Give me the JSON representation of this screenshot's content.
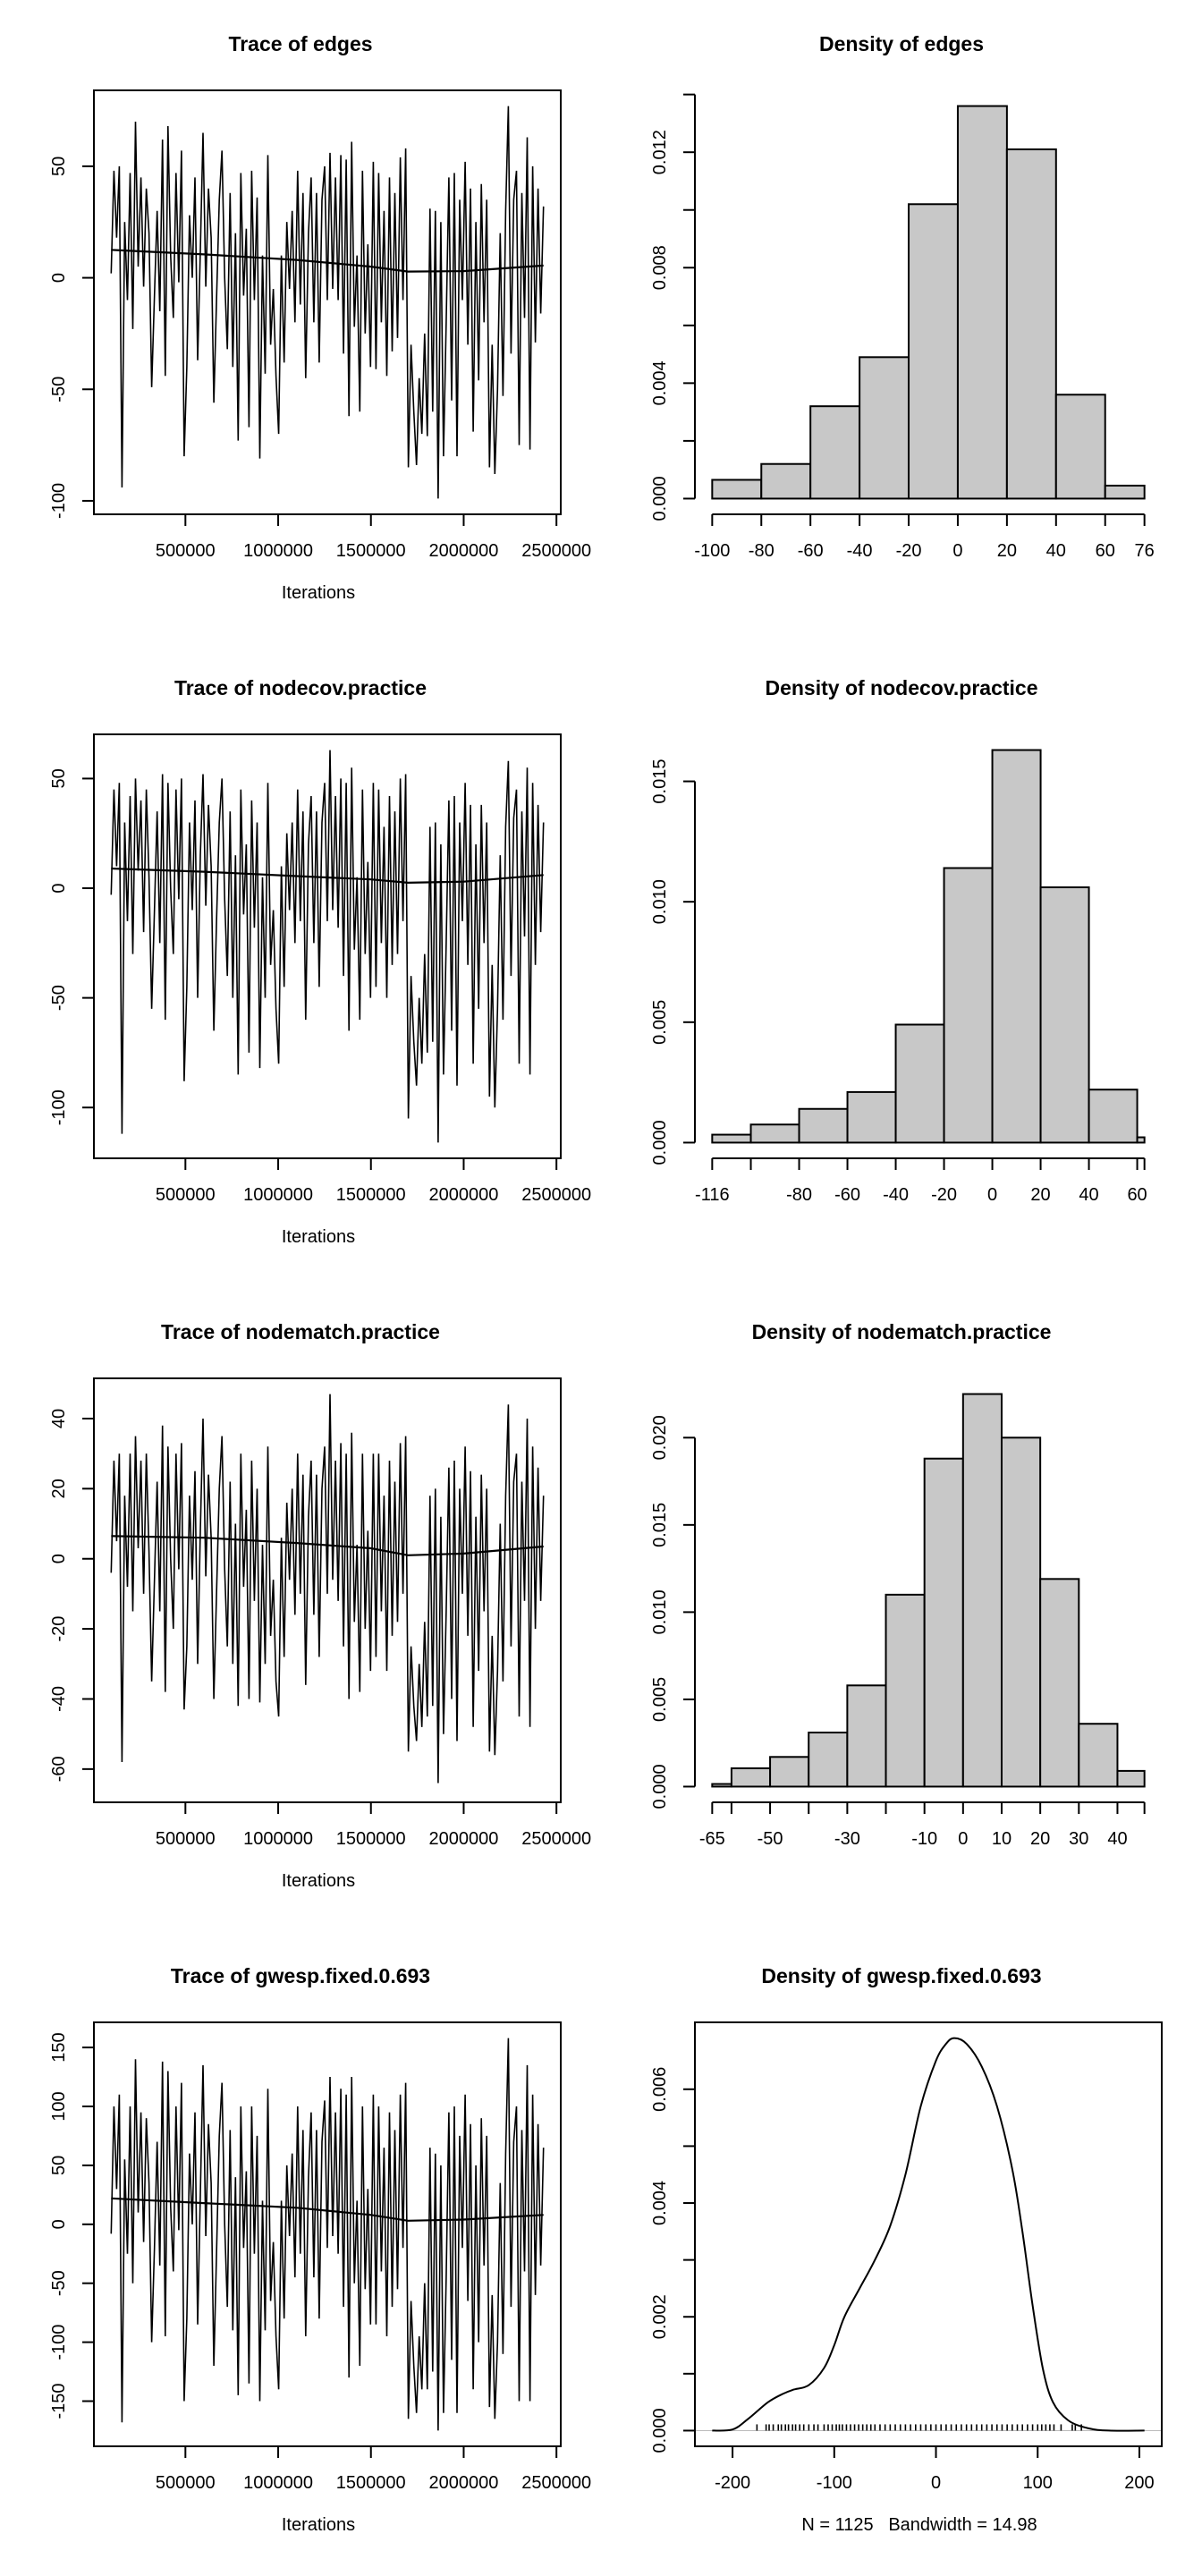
{
  "chart_data": [
    {
      "type": "line",
      "title": "Trace of edges",
      "xlabel": "Iterations",
      "x_range": [
        100000,
        2430000
      ],
      "xticks": [
        500000,
        1000000,
        1500000,
        2000000,
        2500000
      ],
      "yticks": [
        -100,
        -50,
        0,
        50
      ],
      "ylim": [
        -99,
        77
      ],
      "values": [
        2,
        48,
        18,
        50,
        -94,
        25,
        -10,
        47,
        -23,
        70,
        5,
        45,
        -4,
        40,
        20,
        -49,
        -8,
        30,
        -15,
        62,
        -44,
        68,
        10,
        -18,
        47,
        -2,
        57,
        -80,
        -40,
        28,
        0,
        45,
        -37,
        12,
        65,
        -4,
        40,
        18,
        -56,
        -10,
        35,
        57,
        0,
        -32,
        38,
        -40,
        20,
        -73,
        47,
        -8,
        22,
        -67,
        48,
        -10,
        36,
        -81,
        10,
        -43,
        55,
        -30,
        -5,
        -44,
        -70,
        10,
        -38,
        25,
        -5,
        30,
        -20,
        48,
        -12,
        38,
        -45,
        20,
        45,
        -20,
        38,
        -38,
        35,
        50,
        -10,
        56,
        -5,
        45,
        -10,
        55,
        -34,
        53,
        -62,
        61,
        -22,
        10,
        -60,
        48,
        -25,
        15,
        -40,
        52,
        -41,
        47,
        -20,
        30,
        -44,
        45,
        -33,
        38,
        -27,
        54,
        -10,
        58,
        -85,
        -30,
        -60,
        -84,
        -45,
        -70,
        -25,
        -71,
        31,
        -60,
        30,
        -99,
        25,
        -80,
        -20,
        45,
        -55,
        47,
        -80,
        35,
        -10,
        52,
        -30,
        40,
        -69,
        25,
        -46,
        42,
        -20,
        35,
        -85,
        -30,
        -88,
        -50,
        20,
        -53,
        30,
        77,
        -34,
        35,
        48,
        -75,
        38,
        -18,
        63,
        -77,
        50,
        -29,
        40,
        -16,
        32
      ],
      "trend": [
        [
          100000,
          12.5
        ],
        [
          600000,
          10.5
        ],
        [
          1100000,
          8
        ],
        [
          1500000,
          5
        ],
        [
          1700000,
          2.8
        ],
        [
          2000000,
          3
        ],
        [
          2430000,
          5.5
        ]
      ]
    },
    {
      "type": "bar",
      "title": "Density of edges",
      "breaks": [
        -100,
        -80,
        -60,
        -40,
        -20,
        0,
        20,
        40,
        60,
        76
      ],
      "densities": [
        0.00065,
        0.0012,
        0.0032,
        0.0049,
        0.0102,
        0.0136,
        0.0121,
        0.0036,
        0.00045
      ],
      "xtick_labels": [
        -100,
        -80,
        -60,
        -40,
        -20,
        0,
        20,
        40,
        60,
        76
      ],
      "yticks": [
        0,
        0.002,
        0.004,
        0.006,
        0.008,
        0.01,
        0.012,
        0.014
      ],
      "ytick_labels": [
        "0.000",
        "0.004",
        "0.008",
        "0.012"
      ]
    },
    {
      "type": "line",
      "title": "Trace of nodecov.practice",
      "xlabel": "Iterations",
      "x_range": [
        100000,
        2430000
      ],
      "xticks": [
        500000,
        1000000,
        1500000,
        2000000,
        2500000
      ],
      "yticks": [
        -100,
        -50,
        0,
        50
      ],
      "ylim": [
        -116,
        63
      ],
      "values": [
        -3,
        45,
        10,
        48,
        -112,
        30,
        -15,
        42,
        -30,
        50,
        8,
        40,
        -20,
        45,
        5,
        -55,
        -10,
        35,
        -25,
        52,
        -60,
        48,
        0,
        -30,
        45,
        -5,
        50,
        -88,
        -45,
        30,
        -10,
        40,
        -50,
        15,
        52,
        -8,
        38,
        10,
        -65,
        -15,
        30,
        50,
        -5,
        -40,
        35,
        -50,
        15,
        -85,
        45,
        -12,
        20,
        -75,
        40,
        -18,
        30,
        -82,
        5,
        -50,
        48,
        -35,
        -10,
        -55,
        -80,
        10,
        -45,
        25,
        -10,
        30,
        -25,
        45,
        -15,
        35,
        -60,
        20,
        42,
        -25,
        35,
        -45,
        30,
        48,
        -15,
        63,
        -10,
        42,
        -18,
        50,
        -40,
        48,
        -65,
        55,
        -28,
        5,
        -60,
        45,
        -30,
        12,
        -50,
        48,
        -45,
        45,
        -25,
        28,
        -50,
        42,
        -35,
        35,
        -30,
        50,
        -15,
        52,
        -105,
        -40,
        -70,
        -90,
        -50,
        -80,
        -30,
        -75,
        28,
        -70,
        30,
        -116,
        20,
        -85,
        -25,
        40,
        -65,
        42,
        -90,
        30,
        -15,
        48,
        -35,
        38,
        -80,
        20,
        -55,
        38,
        -25,
        30,
        -95,
        -35,
        -100,
        -55,
        15,
        -60,
        28,
        58,
        -40,
        32,
        45,
        -80,
        35,
        -22,
        55,
        -85,
        48,
        -35,
        38,
        -20,
        30
      ],
      "trend": [
        [
          100000,
          9
        ],
        [
          600000,
          7.5
        ],
        [
          1100000,
          5.5
        ],
        [
          1500000,
          4
        ],
        [
          1700000,
          2.5
        ],
        [
          2000000,
          3
        ],
        [
          2430000,
          6
        ]
      ]
    },
    {
      "type": "bar",
      "title": "Density of nodecov.practice",
      "breaks": [
        -116,
        -100,
        -80,
        -60,
        -40,
        -20,
        0,
        20,
        40,
        60,
        63
      ],
      "densities": [
        0.00033,
        0.00075,
        0.0014,
        0.0021,
        0.0049,
        0.0114,
        0.0163,
        0.0106,
        0.0022,
        0.00022
      ],
      "xtick_labels": [
        -116,
        -80,
        -60,
        -40,
        -20,
        0,
        20,
        40,
        60
      ],
      "yticks": [
        0,
        0.005,
        0.01,
        0.015
      ],
      "ytick_labels": [
        "0.000",
        "0.005",
        "0.010",
        "0.015"
      ]
    },
    {
      "type": "line",
      "title": "Trace of nodematch.practice",
      "xlabel": "Iterations",
      "x_range": [
        100000,
        2430000
      ],
      "xticks": [
        500000,
        1000000,
        1500000,
        2000000,
        2500000
      ],
      "yticks": [
        -60,
        -40,
        -20,
        0,
        20,
        40
      ],
      "ylim": [
        -65,
        47
      ],
      "values": [
        -4,
        28,
        5,
        30,
        -58,
        18,
        -8,
        30,
        -15,
        35,
        3,
        28,
        -10,
        30,
        2,
        -35,
        -6,
        22,
        -15,
        38,
        -38,
        32,
        0,
        -20,
        30,
        -3,
        33,
        -43,
        -25,
        18,
        -6,
        25,
        -30,
        8,
        40,
        -5,
        24,
        6,
        -40,
        -10,
        20,
        35,
        -3,
        -25,
        22,
        -30,
        10,
        -42,
        30,
        -8,
        14,
        -40,
        28,
        -12,
        20,
        -41,
        4,
        -30,
        32,
        -22,
        -6,
        -35,
        -45,
        6,
        -28,
        16,
        -6,
        20,
        -16,
        30,
        -10,
        24,
        -36,
        12,
        28,
        -16,
        24,
        -28,
        20,
        32,
        -10,
        47,
        -6,
        28,
        -12,
        33,
        -25,
        30,
        -40,
        36,
        -18,
        4,
        -38,
        30,
        -20,
        8,
        -32,
        30,
        -28,
        30,
        -15,
        18,
        -32,
        28,
        -22,
        22,
        -18,
        33,
        -10,
        35,
        -55,
        -25,
        -42,
        -52,
        -30,
        -48,
        -18,
        -45,
        18,
        -42,
        20,
        -64,
        12,
        -50,
        -15,
        26,
        -40,
        28,
        -52,
        20,
        -10,
        32,
        -22,
        25,
        -48,
        12,
        -32,
        24,
        -15,
        20,
        -55,
        -22,
        -56,
        -32,
        10,
        -35,
        18,
        44,
        -25,
        22,
        30,
        -45,
        22,
        -12,
        40,
        -48,
        32,
        -20,
        26,
        -12,
        18
      ],
      "trend": [
        [
          100000,
          6.5
        ],
        [
          600000,
          6
        ],
        [
          1100000,
          4.5
        ],
        [
          1500000,
          3
        ],
        [
          1700000,
          1
        ],
        [
          2000000,
          1.5
        ],
        [
          2430000,
          3.5
        ]
      ]
    },
    {
      "type": "bar",
      "title": "Density of nodematch.practice",
      "breaks": [
        -65,
        -60,
        -50,
        -40,
        -30,
        -20,
        -10,
        0,
        10,
        20,
        30,
        40,
        47
      ],
      "densities": [
        0.00015,
        0.00105,
        0.0017,
        0.0031,
        0.0058,
        0.011,
        0.0188,
        0.0225,
        0.02,
        0.0119,
        0.0036,
        0.0009
      ],
      "xtick_labels": [
        -65,
        -50,
        -30,
        -10,
        0,
        10,
        20,
        30,
        40
      ],
      "yticks": [
        0,
        0.005,
        0.01,
        0.015,
        0.02
      ],
      "ytick_labels": [
        "0.000",
        "0.005",
        "0.010",
        "0.015",
        "0.020"
      ]
    },
    {
      "type": "line",
      "title": "Trace of gwesp.fixed.0.693",
      "xlabel": "Iterations",
      "x_range": [
        100000,
        2430000
      ],
      "xticks": [
        500000,
        1000000,
        1500000,
        2000000,
        2500000
      ],
      "yticks": [
        -150,
        -100,
        -50,
        0,
        50,
        100,
        150
      ],
      "ylim": [
        -175,
        158
      ],
      "values": [
        -8,
        100,
        30,
        110,
        -168,
        55,
        -25,
        100,
        -50,
        140,
        10,
        95,
        -15,
        90,
        35,
        -100,
        -20,
        70,
        -35,
        138,
        -95,
        130,
        15,
        -40,
        100,
        -5,
        120,
        -150,
        -80,
        60,
        0,
        95,
        -85,
        25,
        135,
        -10,
        85,
        35,
        -120,
        -25,
        75,
        120,
        0,
        -70,
        80,
        -90,
        40,
        -145,
        100,
        -20,
        45,
        -135,
        100,
        -25,
        75,
        -150,
        20,
        -90,
        115,
        -65,
        -15,
        -95,
        -140,
        20,
        -80,
        50,
        -10,
        60,
        -45,
        100,
        -25,
        80,
        -95,
        40,
        95,
        -45,
        80,
        -80,
        70,
        105,
        -20,
        125,
        -10,
        95,
        -25,
        115,
        -70,
        110,
        -130,
        125,
        -50,
        20,
        -120,
        100,
        -55,
        30,
        -85,
        110,
        -85,
        100,
        -40,
        65,
        -95,
        95,
        -70,
        80,
        -55,
        110,
        -20,
        120,
        -165,
        -65,
        -120,
        -160,
        -95,
        -140,
        -50,
        -140,
        65,
        -125,
        60,
        -175,
        50,
        -160,
        -45,
        95,
        -115,
        100,
        -160,
        75,
        -20,
        110,
        -65,
        85,
        -140,
        50,
        -100,
        90,
        -35,
        75,
        -155,
        -60,
        -165,
        -100,
        35,
        -110,
        60,
        158,
        -70,
        70,
        100,
        -150,
        80,
        -40,
        135,
        -150,
        110,
        -60,
        85,
        -35,
        65
      ],
      "trend": [
        [
          100000,
          22
        ],
        [
          600000,
          18
        ],
        [
          1100000,
          14
        ],
        [
          1500000,
          8
        ],
        [
          1700000,
          3
        ],
        [
          2000000,
          4
        ],
        [
          2430000,
          8
        ]
      ]
    },
    {
      "type": "density",
      "title": "Density of gwesp.fixed.0.693",
      "xlabel": "N = 1125   Bandwidth = 14.98",
      "xticks": [
        -200,
        -100,
        0,
        100,
        200
      ],
      "yticks": [
        0,
        0.001,
        0.002,
        0.003,
        0.004,
        0.005,
        0.006
      ],
      "ytick_labels": [
        "0.000",
        "0.002",
        "0.004",
        "0.006"
      ],
      "curve": [
        [
          -220,
          0
        ],
        [
          -200,
          2e-05
        ],
        [
          -185,
          0.0002
        ],
        [
          -165,
          0.0005
        ],
        [
          -150,
          0.00065
        ],
        [
          -140,
          0.00072
        ],
        [
          -125,
          0.0008
        ],
        [
          -110,
          0.0011
        ],
        [
          -100,
          0.0015
        ],
        [
          -90,
          0.002
        ],
        [
          -75,
          0.0025
        ],
        [
          -60,
          0.003
        ],
        [
          -45,
          0.0036
        ],
        [
          -30,
          0.0045
        ],
        [
          -15,
          0.0057
        ],
        [
          0,
          0.0065
        ],
        [
          10,
          0.0068
        ],
        [
          18,
          0.0069
        ],
        [
          30,
          0.0068
        ],
        [
          45,
          0.0064
        ],
        [
          60,
          0.0057
        ],
        [
          75,
          0.0046
        ],
        [
          85,
          0.0035
        ],
        [
          95,
          0.0022
        ],
        [
          105,
          0.0011
        ],
        [
          115,
          0.0005
        ],
        [
          130,
          0.00018
        ],
        [
          150,
          4e-05
        ],
        [
          170,
          0
        ],
        [
          205,
          0
        ]
      ],
      "rug": [
        -176,
        -167,
        -164,
        -160,
        -155,
        -152,
        -148,
        -145,
        -141,
        -138,
        -134,
        -130,
        -125,
        -120,
        -116,
        -110,
        -106,
        -102,
        -98,
        -95,
        -92,
        -88,
        -84,
        -80,
        -76,
        -72,
        -68,
        -64,
        -60,
        -55,
        -50,
        -45,
        -40,
        -35,
        -30,
        -25,
        -20,
        -15,
        -10,
        -5,
        0,
        5,
        10,
        15,
        20,
        25,
        30,
        35,
        40,
        45,
        50,
        55,
        60,
        65,
        70,
        75,
        80,
        85,
        90,
        95,
        100,
        104,
        108,
        112,
        116,
        123,
        134,
        137,
        143
      ]
    }
  ]
}
